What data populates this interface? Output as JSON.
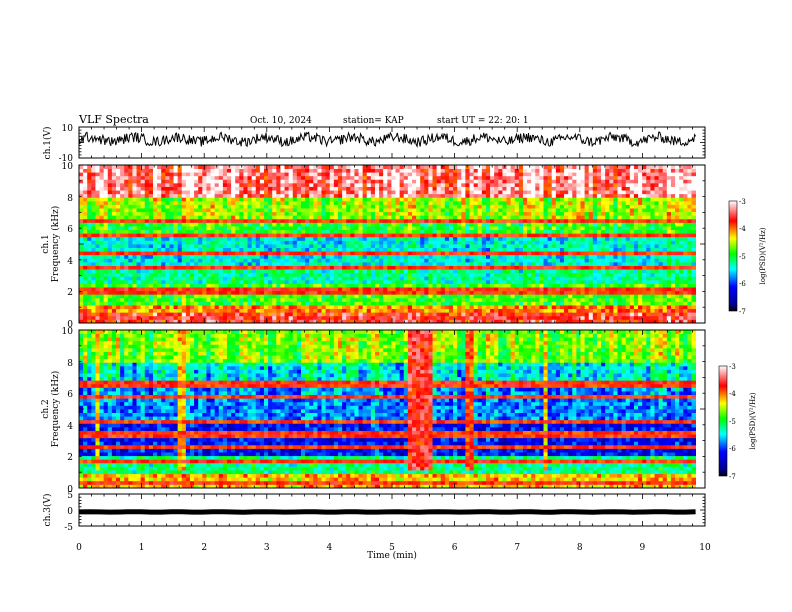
{
  "header": {
    "title": "VLF Spectra",
    "date": "Oct. 10, 2024",
    "station": "station= KAP",
    "start": "start  UT =   22: 20: 1"
  },
  "chart_data": [
    {
      "id": "ch1_waveform",
      "type": "line",
      "ylabel": "ch.1(V)",
      "ylim": [
        -10,
        10
      ],
      "yticks": [
        "10",
        "-10"
      ],
      "xlim": [
        0,
        10
      ],
      "description_series": {
        "name": "ch.1 voltage",
        "x_range_min": [
          0,
          9.85
        ],
        "approx_level": 2,
        "approx_amplitude": 6
      }
    },
    {
      "id": "ch1_spectrogram",
      "type": "heatmap",
      "ylabel_line1": "ch.1",
      "ylabel_line2": "Frequency (kHz)",
      "ylim": [
        0,
        10
      ],
      "yticks": [
        "10",
        "8",
        "6",
        "4",
        "2",
        "0"
      ],
      "xlim": [
        0,
        10
      ],
      "data_x_range_min": [
        0,
        9.85
      ],
      "colorbar": {
        "label": "log(PSD)(V²/Hz)",
        "range": [
          -7,
          -3
        ],
        "ticks": [
          "-3",
          "-4",
          "-5",
          "-6",
          "-7"
        ]
      },
      "bands_khz": [
        {
          "range": [
            8.0,
            10.0
          ],
          "log_psd": -3.3
        },
        {
          "range": [
            6.6,
            8.0
          ],
          "log_psd": -4.6
        },
        {
          "range": [
            5.6,
            6.6
          ],
          "log_psd": -5.0
        },
        {
          "range": [
            3.4,
            5.4
          ],
          "log_psd": -5.6
        },
        {
          "range": [
            2.4,
            3.4
          ],
          "log_psd": -5.4
        },
        {
          "range": [
            1.2,
            2.4
          ],
          "log_psd": -4.9
        },
        {
          "range": [
            0.6,
            1.2
          ],
          "log_psd": -4.0
        },
        {
          "range": [
            0.0,
            0.6
          ],
          "log_psd": -3.6
        }
      ],
      "lines_khz": [
        0.3,
        1.95,
        2.25,
        3.55,
        4.45,
        5.5,
        6.5
      ]
    },
    {
      "id": "ch2_spectrogram",
      "type": "heatmap",
      "ylabel_line1": "ch.2",
      "ylabel_line2": "Frequency (kHz)",
      "ylim": [
        0,
        10
      ],
      "yticks": [
        "10",
        "8",
        "6",
        "4",
        "2",
        "0"
      ],
      "xlim": [
        0,
        10
      ],
      "data_x_range_min": [
        0,
        9.85
      ],
      "colorbar": {
        "label": "log(PSD)(V²/Hz)",
        "range": [
          -7,
          -3
        ],
        "ticks": [
          "-3",
          "-4",
          "-5",
          "-6",
          "-7"
        ]
      },
      "bands_khz": [
        {
          "range": [
            8.0,
            10.0
          ],
          "log_psd": -4.7
        },
        {
          "range": [
            6.6,
            8.0
          ],
          "log_psd": -5.6
        },
        {
          "range": [
            4.2,
            6.6
          ],
          "log_psd": -6.0
        },
        {
          "range": [
            2.0,
            4.2
          ],
          "log_psd": -6.4
        },
        {
          "range": [
            1.0,
            2.0
          ],
          "log_psd": -5.3
        },
        {
          "range": [
            0.0,
            1.0
          ],
          "log_psd": -4.2
        }
      ],
      "bursts_min": [
        {
          "range": [
            5.25,
            5.62
          ],
          "log_psd": -3.6
        },
        {
          "range": [
            6.15,
            6.28
          ],
          "log_psd": -3.8
        },
        {
          "range": [
            1.6,
            1.68
          ],
          "log_psd": -4.2
        },
        {
          "range": [
            0.27,
            0.34
          ],
          "log_psd": -4.4
        },
        {
          "range": [
            7.45,
            7.5
          ],
          "log_psd": -4.3
        }
      ],
      "lines_khz": [
        0.25,
        1.8,
        2.7,
        3.4,
        4.3,
        5.8,
        6.6
      ]
    },
    {
      "id": "ch3_waveform",
      "type": "line",
      "ylabel": "ch.3(V)",
      "ylim": [
        -5,
        5
      ],
      "yticks": [
        "5",
        "0",
        "-5"
      ],
      "xlim": [
        0,
        10
      ],
      "description_series": {
        "name": "ch.3 voltage",
        "x_range_min": [
          0,
          9.85
        ],
        "approx_level": -0.6,
        "approx_amplitude": 0.3
      }
    }
  ],
  "x_axis": {
    "label": "Time (min)",
    "ticks": [
      "0",
      "1",
      "2",
      "3",
      "4",
      "5",
      "6",
      "7",
      "8",
      "9",
      "10"
    ]
  }
}
